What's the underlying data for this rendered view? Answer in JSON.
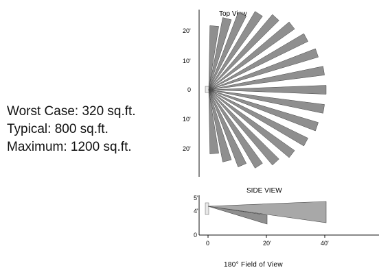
{
  "coverage": {
    "worst_case": "Worst Case: 320 sq.ft.",
    "typical": "Typical: 800 sq.ft.",
    "maximum": "Maximum: 1200 sq.ft."
  },
  "top_view": {
    "title": "Top View",
    "y_ticks": [
      "20'",
      "10'",
      "0",
      "10'",
      "20'"
    ],
    "beam_count": 19,
    "beam_color": "#8f8f8f"
  },
  "side_view": {
    "title": "SIDE VIEW",
    "y_ticks": [
      "5'",
      "4'",
      "0"
    ],
    "x_ticks": [
      "0",
      "20'",
      "40'"
    ],
    "beam_color": "#a8a8a8"
  },
  "caption": "180° Field of View"
}
